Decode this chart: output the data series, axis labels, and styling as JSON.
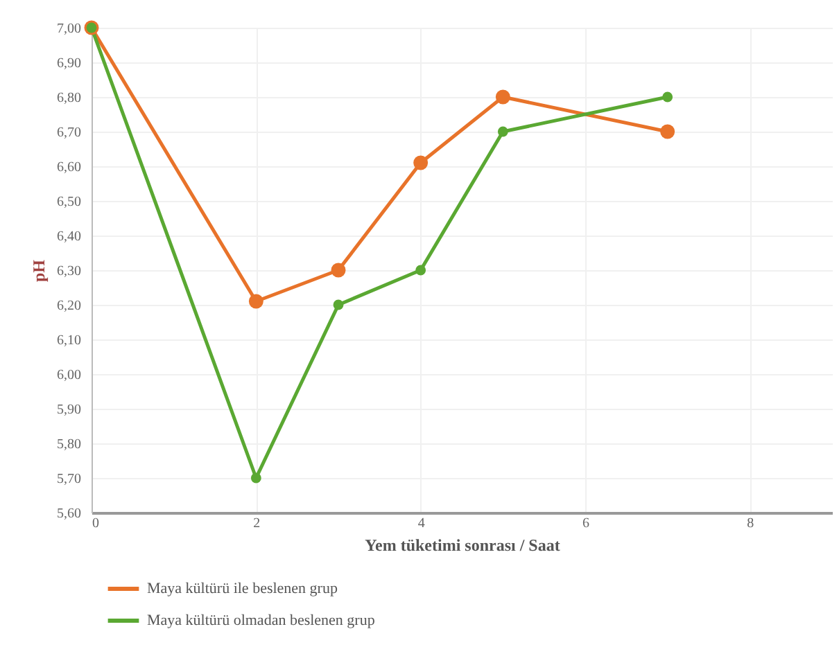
{
  "chart_data": {
    "type": "line",
    "xlabel": "Yem tüketimi sonrası / Saat",
    "ylabel": "pH",
    "x": [
      0,
      2,
      3,
      4,
      5,
      7
    ],
    "series": [
      {
        "name": "Maya kültürü ile beslenen grup",
        "color": "#e8732a",
        "values": [
          7.0,
          6.21,
          6.3,
          6.61,
          6.8,
          6.7
        ]
      },
      {
        "name": "Maya kültürü olmadan beslenen grup",
        "color": "#5aa832",
        "values": [
          7.0,
          5.7,
          6.2,
          6.3,
          6.7,
          6.8
        ]
      }
    ],
    "xlim": [
      0,
      9
    ],
    "xticks": [
      0,
      2,
      4,
      6,
      8
    ],
    "ylim": [
      5.6,
      7.0
    ],
    "yticks": [
      {
        "value": 5.6,
        "label": "5,60"
      },
      {
        "value": 5.7,
        "label": "5,70"
      },
      {
        "value": 5.8,
        "label": "5,80"
      },
      {
        "value": 5.9,
        "label": "5,90"
      },
      {
        "value": 6.0,
        "label": "6,00"
      },
      {
        "value": 6.1,
        "label": "6,10"
      },
      {
        "value": 6.2,
        "label": "6,20"
      },
      {
        "value": 6.3,
        "label": "6,30"
      },
      {
        "value": 6.4,
        "label": "6,40"
      },
      {
        "value": 6.5,
        "label": "6,50"
      },
      {
        "value": 6.6,
        "label": "6,60"
      },
      {
        "value": 6.7,
        "label": "6,70"
      },
      {
        "value": 6.8,
        "label": "6,80"
      },
      {
        "value": 6.9,
        "label": "6,90"
      },
      {
        "value": 7.0,
        "label": "7,00"
      }
    ],
    "grid": true,
    "legend": "bottom left",
    "marker": "circle",
    "line_style": "solid"
  }
}
